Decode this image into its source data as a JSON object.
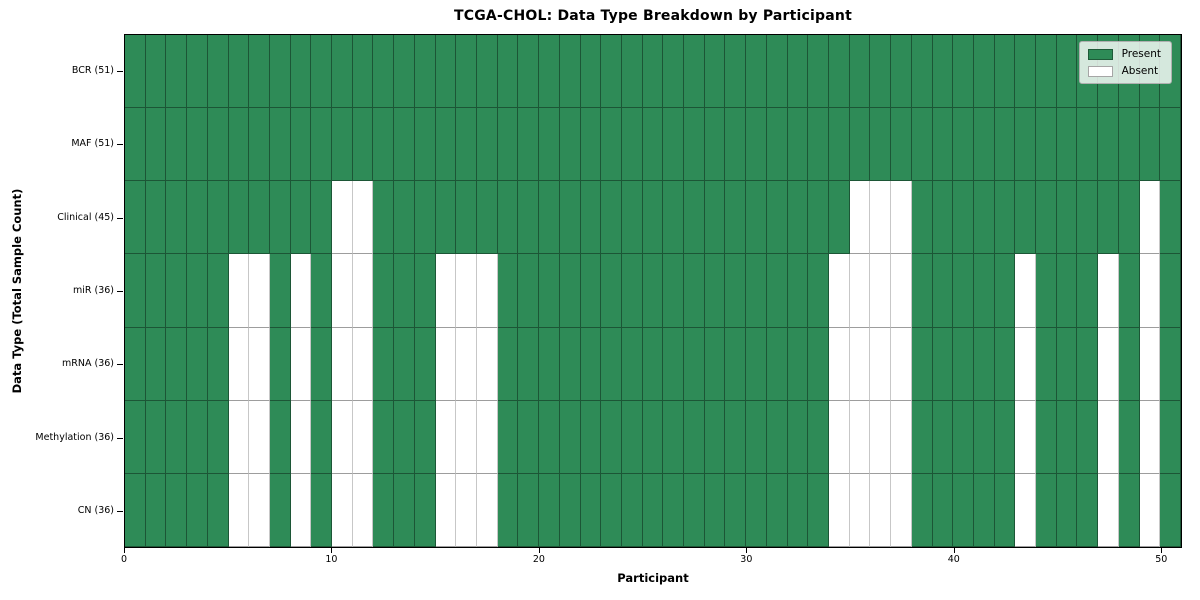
{
  "chart_data": {
    "type": "heatmap",
    "title": "TCGA-CHOL: Data Type Breakdown by Participant",
    "xlabel": "Participant",
    "ylabel": "Data Type (Total Sample Count)",
    "n_participants": 51,
    "x_range": [
      0,
      51
    ],
    "x_ticks": [
      0,
      10,
      20,
      30,
      40,
      50
    ],
    "grid_on": true,
    "cell_states": [
      "Present",
      "Absent"
    ],
    "colors": {
      "present": "#2e8b57",
      "absent": "#ffffff",
      "cell_border": "rgba(0,0,0,0.38)",
      "axes_edge": "#000000"
    },
    "legend": {
      "position": "upper right",
      "entries": [
        {
          "label": "Present",
          "color": "#2e8b57"
        },
        {
          "label": "Absent",
          "color": "#ffffff"
        }
      ]
    },
    "rows": [
      {
        "label": "BCR (51)",
        "data_type": "BCR",
        "present_count": 51,
        "absent_participants": []
      },
      {
        "label": "MAF (51)",
        "data_type": "MAF",
        "present_count": 51,
        "absent_participants": []
      },
      {
        "label": "Clinical (45)",
        "data_type": "Clinical",
        "present_count": 45,
        "absent_participants": [
          10,
          11,
          35,
          36,
          37,
          49
        ]
      },
      {
        "label": "miR (36)",
        "data_type": "miR",
        "present_count": 36,
        "absent_participants": [
          5,
          6,
          8,
          10,
          11,
          15,
          16,
          17,
          34,
          35,
          36,
          37,
          43,
          47,
          49
        ]
      },
      {
        "label": "mRNA (36)",
        "data_type": "mRNA",
        "present_count": 36,
        "absent_participants": [
          5,
          6,
          8,
          10,
          11,
          15,
          16,
          17,
          34,
          35,
          36,
          37,
          43,
          47,
          49
        ]
      },
      {
        "label": "Methylation (36)",
        "data_type": "Methylation",
        "present_count": 36,
        "absent_participants": [
          5,
          6,
          8,
          10,
          11,
          15,
          16,
          17,
          34,
          35,
          36,
          37,
          43,
          47,
          49
        ]
      },
      {
        "label": "CN (36)",
        "data_type": "CN",
        "present_count": 36,
        "absent_participants": [
          5,
          6,
          8,
          10,
          11,
          15,
          16,
          17,
          34,
          35,
          36,
          37,
          43,
          47,
          49
        ]
      }
    ]
  }
}
